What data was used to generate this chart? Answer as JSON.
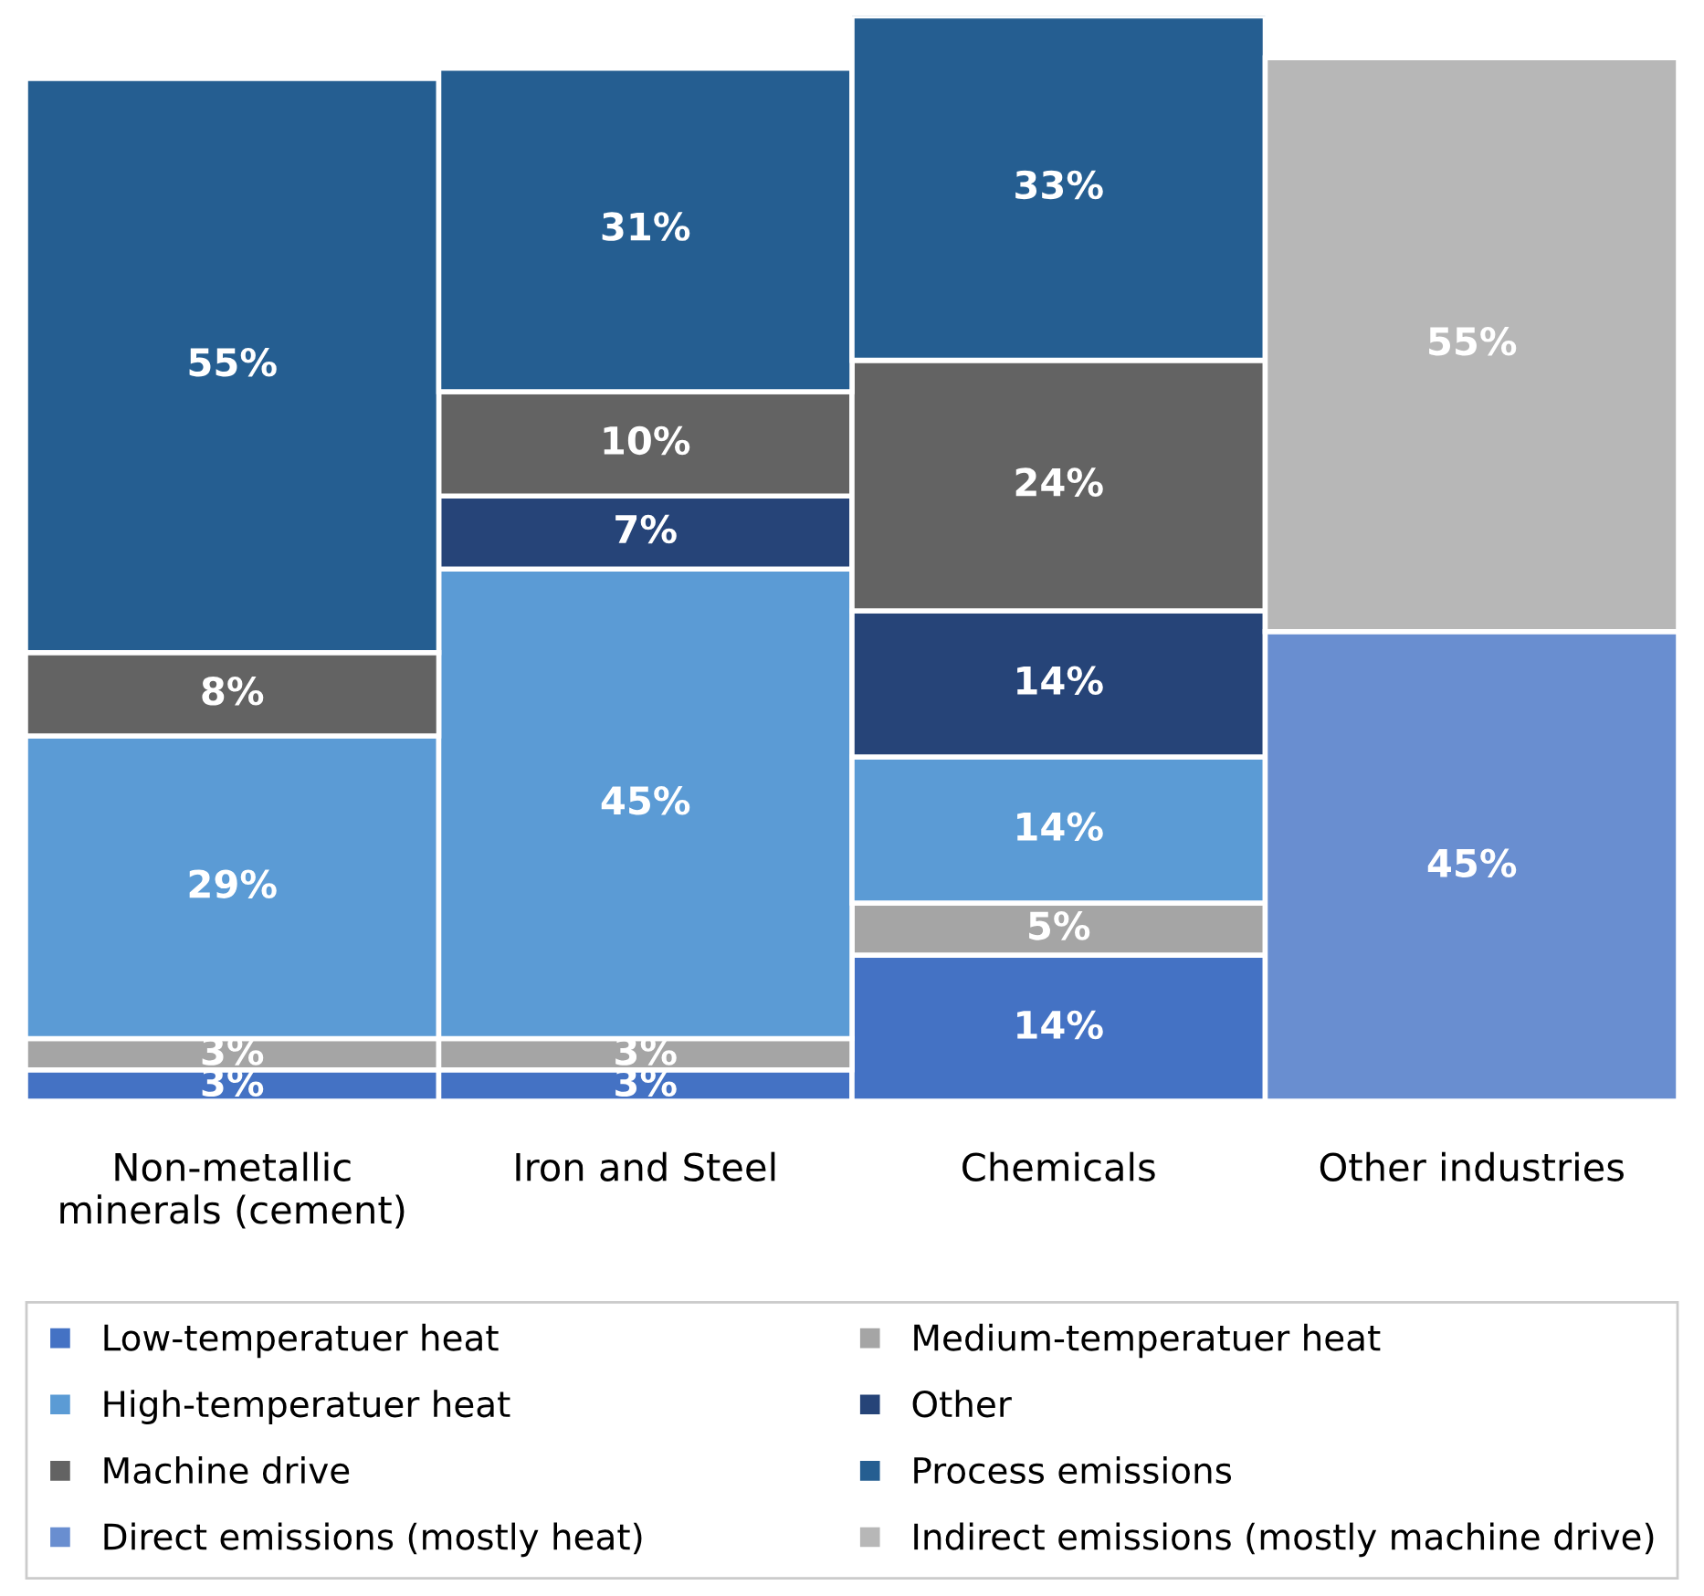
{
  "chart_data": {
    "type": "bar",
    "stacked": true,
    "legend": "bottom",
    "grid": false,
    "categories": [
      "Non-metallic minerals (cement)",
      "Iron and Steel",
      "Chemicals",
      "Other industries"
    ],
    "series": [
      {
        "name": "Low-temperatuer heat",
        "color": "#4472c4",
        "values": [
          3,
          3,
          14,
          null
        ],
        "value_labels": [
          "3%",
          "3%",
          "14%",
          null
        ]
      },
      {
        "name": "Medium-temperatuer heat",
        "color": "#a5a5a5",
        "values": [
          3,
          3,
          5,
          null
        ],
        "value_labels": [
          "3%",
          "3%",
          "5%",
          null
        ]
      },
      {
        "name": "High-temperatuer heat",
        "color": "#5b9bd5",
        "values": [
          29,
          45,
          14,
          null
        ],
        "value_labels": [
          "29%",
          "45%",
          "14%",
          null
        ]
      },
      {
        "name": "Other",
        "color": "#264478",
        "values": [
          null,
          7,
          14,
          null
        ],
        "value_labels": [
          null,
          "7%",
          "14%",
          null
        ]
      },
      {
        "name": "Machine drive",
        "color": "#636363",
        "values": [
          8,
          10,
          24,
          null
        ],
        "value_labels": [
          "8%",
          "10%",
          "24%",
          null
        ]
      },
      {
        "name": "Process emissions",
        "color": "#255e91",
        "values": [
          55,
          31,
          33,
          null
        ],
        "value_labels": [
          "55%",
          "31%",
          "33%",
          null
        ]
      },
      {
        "name": "Direct emissions (mostly heat)",
        "color": "#698ed0",
        "values": [
          null,
          null,
          null,
          45
        ],
        "value_labels": [
          null,
          null,
          null,
          "45%"
        ]
      },
      {
        "name": "Indirect emissions (mostly machine drive)",
        "color": "#b7b7b7",
        "values": [
          null,
          null,
          null,
          55
        ],
        "value_labels": [
          null,
          null,
          null,
          "55%"
        ]
      }
    ]
  }
}
